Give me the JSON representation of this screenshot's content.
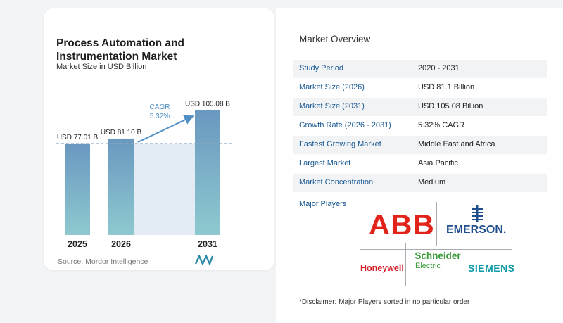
{
  "chart": {
    "title": "Process Automation and Instrumentation Market",
    "subtitle": "Market Size in USD Billion",
    "source": "Source:  Mordor Intelligence",
    "cagr_label": "CAGR",
    "cagr_value": "5.32%"
  },
  "chart_data": {
    "type": "bar",
    "title": "Process Automation and Instrumentation Market",
    "subtitle": "Market Size in USD Billion",
    "categories": [
      "2025",
      "2026",
      "2031"
    ],
    "values": [
      77.01,
      81.1,
      105.08
    ],
    "data_labels": [
      "USD 77.01 B",
      "USD 81.10 B",
      "USD 105.08 B"
    ],
    "ylabel": "",
    "xlabel": "",
    "annotation": "CAGR 5.32%",
    "reference_line_value": 77.01,
    "colors": {
      "bar_top": "#6a98c0",
      "bar_bottom": "#8ec9cf",
      "cagr": "#4f8fc4",
      "highlight_band": "#e3ecf4"
    }
  },
  "overview": {
    "title": "Market Overview",
    "rows": [
      {
        "label": "Study Period",
        "value": "2020 - 2031"
      },
      {
        "label": "Market Size (2026)",
        "value": "USD 81.1 Billion"
      },
      {
        "label": "Market Size (2031)",
        "value": "USD 105.08 Billion"
      },
      {
        "label": "Growth Rate (2026 - 2031)",
        "value": "5.32% CAGR"
      },
      {
        "label": "Fastest Growing Market",
        "value": "Middle East and Africa"
      },
      {
        "label": "Largest Market",
        "value": "Asia Pacific"
      },
      {
        "label": "Market Concentration",
        "value": "Medium"
      }
    ]
  },
  "players": {
    "title": "Major Players",
    "logos": {
      "abb": "ABB",
      "emerson": "EMERSON.",
      "honeywell": "Honeywell",
      "schneider": "Schneider",
      "schneider_sub": "Electric",
      "siemens": "SIEMENS"
    }
  },
  "disclaimer": "*Disclaimer: Major Players sorted in no particular order"
}
